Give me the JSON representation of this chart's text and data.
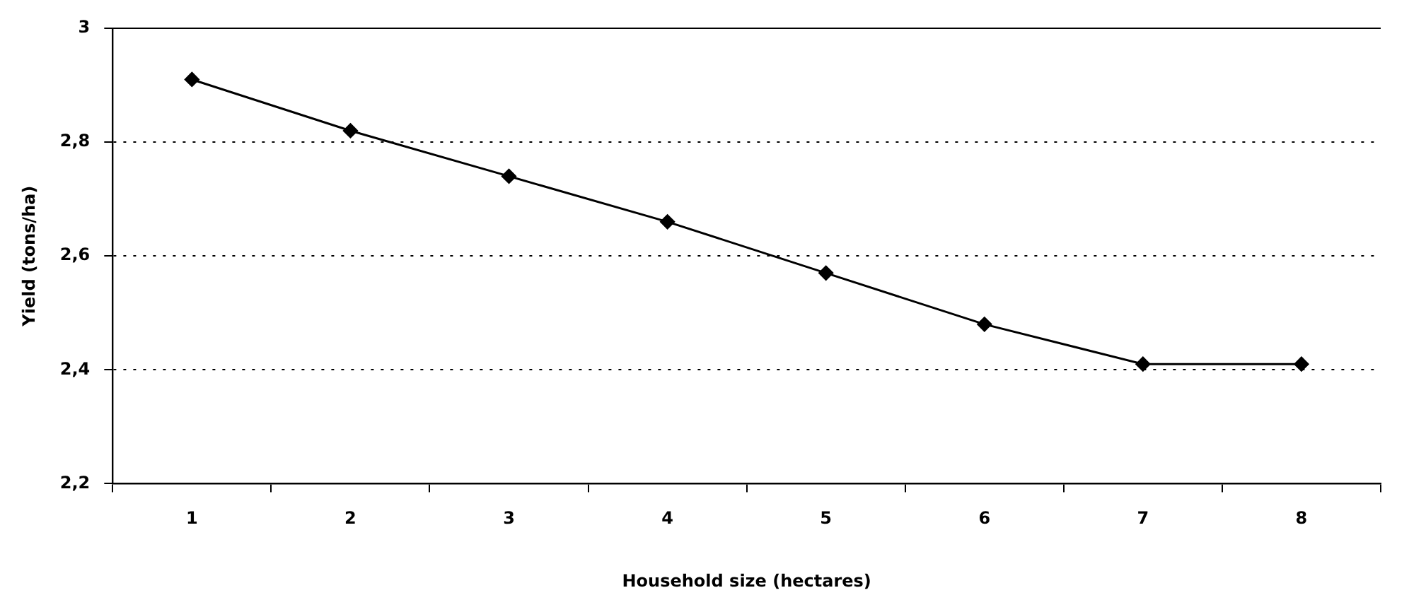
{
  "chart_data": {
    "type": "line",
    "xlabel": "Household size (hectares)",
    "ylabel": "Yield (tons/ha)",
    "categories": [
      "1",
      "2",
      "3",
      "4",
      "5",
      "6",
      "7",
      "8"
    ],
    "series": [
      {
        "color": "#000000",
        "values": [
          2.91,
          2.82,
          2.74,
          2.66,
          2.57,
          2.48,
          2.41,
          2.41
        ]
      }
    ],
    "ylim": [
      2.2,
      3
    ],
    "yticks": [
      {
        "value": 2.2,
        "label": "2,2"
      },
      {
        "value": 2.4,
        "label": "2,4"
      },
      {
        "value": 2.6,
        "label": "2,6"
      },
      {
        "value": 2.8,
        "label": "2,8"
      },
      {
        "value": 3,
        "label": "3"
      }
    ],
    "grid": "y",
    "legend": false,
    "marker": "diamond",
    "line_style": "solid"
  }
}
